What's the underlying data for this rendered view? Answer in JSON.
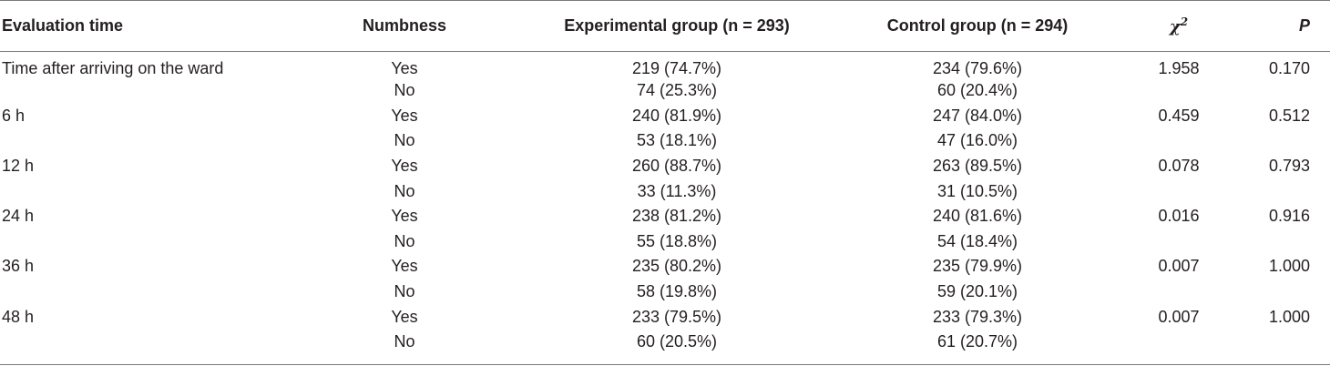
{
  "headers": {
    "evaluation_time": "Evaluation time",
    "numbness": "Numbness",
    "experimental": "Experimental group (n = 293)",
    "control": "Control group (n = 294)",
    "chi_base": "χ",
    "chi_sup": "2",
    "p": "P"
  },
  "rows": [
    {
      "time": "Time after arriving on the ward",
      "numbness": "Yes",
      "experimental": "219 (74.7%)",
      "control": "234 (79.6%)",
      "chi2": "1.958",
      "p": "0.170"
    },
    {
      "time": "",
      "numbness": "No",
      "experimental": "74 (25.3%)",
      "control": "60 (20.4%)",
      "chi2": "",
      "p": ""
    },
    {
      "time": "6 h",
      "numbness": "Yes",
      "experimental": "240 (81.9%)",
      "control": "247 (84.0%)",
      "chi2": "0.459",
      "p": "0.512"
    },
    {
      "time": "",
      "numbness": "No",
      "experimental": "53 (18.1%)",
      "control": "47 (16.0%)",
      "chi2": "",
      "p": ""
    },
    {
      "time": "12 h",
      "numbness": "Yes",
      "experimental": "260 (88.7%)",
      "control": "263 (89.5%)",
      "chi2": "0.078",
      "p": "0.793"
    },
    {
      "time": "",
      "numbness": "No",
      "experimental": "33 (11.3%)",
      "control": "31 (10.5%)",
      "chi2": "",
      "p": ""
    },
    {
      "time": "24 h",
      "numbness": "Yes",
      "experimental": "238 (81.2%)",
      "control": "240 (81.6%)",
      "chi2": "0.016",
      "p": "0.916"
    },
    {
      "time": "",
      "numbness": "No",
      "experimental": "55 (18.8%)",
      "control": "54 (18.4%)",
      "chi2": "",
      "p": ""
    },
    {
      "time": "36 h",
      "numbness": "Yes",
      "experimental": "235 (80.2%)",
      "control": "235 (79.9%)",
      "chi2": "0.007",
      "p": "1.000"
    },
    {
      "time": "",
      "numbness": "No",
      "experimental": "58 (19.8%)",
      "control": "59 (20.1%)",
      "chi2": "",
      "p": ""
    },
    {
      "time": "48 h",
      "numbness": "Yes",
      "experimental": "233 (79.5%)",
      "control": "233 (79.3%)",
      "chi2": "0.007",
      "p": "1.000"
    },
    {
      "time": "",
      "numbness": "No",
      "experimental": "60 (20.5%)",
      "control": "61 (20.7%)",
      "chi2": "",
      "p": ""
    }
  ]
}
